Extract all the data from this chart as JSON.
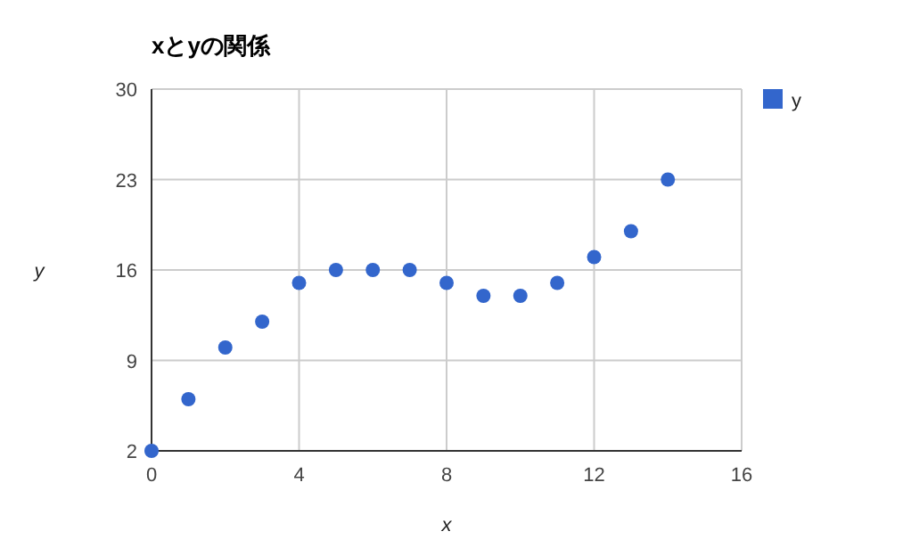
{
  "chart_data": {
    "type": "scatter",
    "title": "xとyの関係",
    "xlabel": "x",
    "ylabel": "y",
    "x": [
      0,
      1,
      2,
      3,
      4,
      5,
      6,
      7,
      8,
      9,
      10,
      11,
      12,
      13,
      14
    ],
    "series": [
      {
        "name": "y",
        "color": "#3366cc",
        "values": [
          2,
          6,
          10,
          12,
          15,
          16,
          16,
          16,
          15,
          14,
          14,
          15,
          17,
          19,
          23
        ]
      }
    ],
    "xlim": [
      0,
      16
    ],
    "xticks": [
      0,
      4,
      8,
      12,
      16
    ],
    "ylim": [
      2,
      30
    ],
    "yticks": [
      2,
      9,
      16,
      23,
      30
    ],
    "grid": true,
    "legend": "top right",
    "marker": "circle"
  }
}
